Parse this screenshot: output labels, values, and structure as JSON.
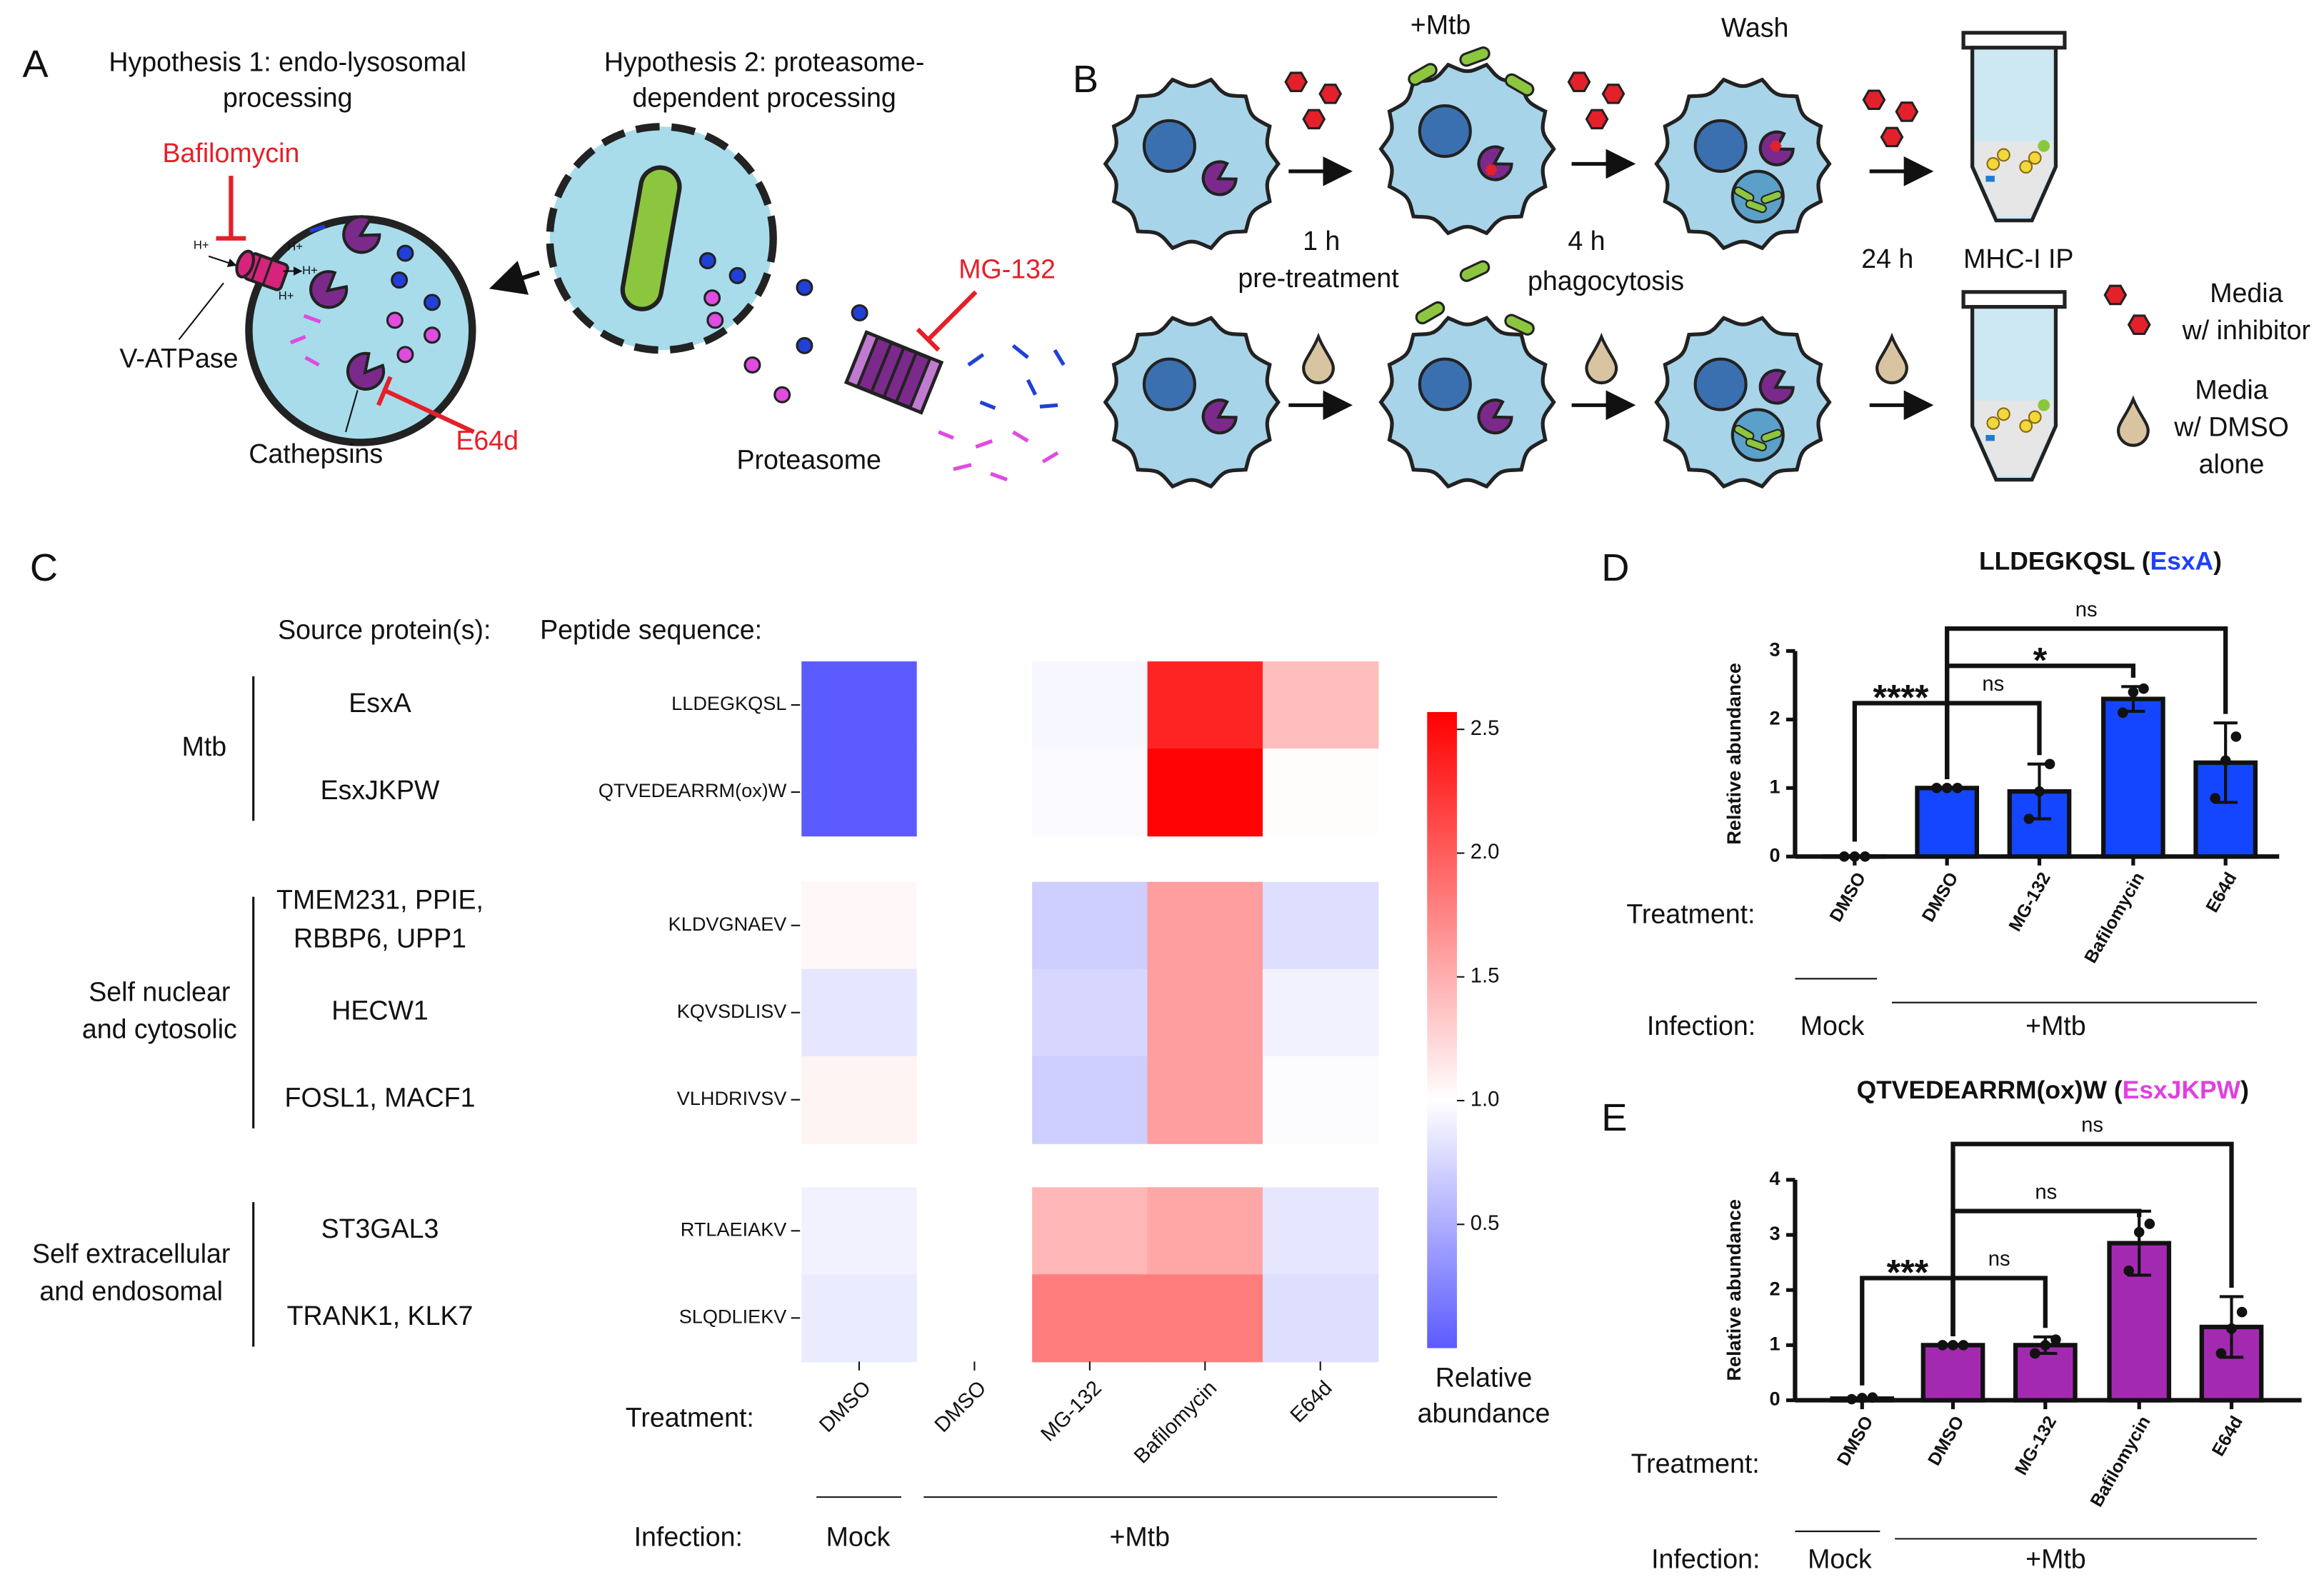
{
  "panel_a": {
    "label": "A",
    "hypothesis_1": [
      "Hypothesis 1: endo-lysosomal",
      "processing"
    ],
    "hypothesis_2": [
      "Hypothesis 2: proteasome-",
      "dependent processing"
    ],
    "inhibitors": {
      "bafilomycin": "Bafilomycin",
      "e64d": "E64d",
      "mg132": "MG-132"
    },
    "proton": "H+",
    "pump": "V-ATPase",
    "proteases": "Cathepsins",
    "proteasome": "Proteasome"
  },
  "panel_b": {
    "label": "B",
    "infection": "+Mtb",
    "wash": "Wash",
    "step_1": [
      "1 h",
      "pre-treatment"
    ],
    "step_2": [
      "4 h",
      "phagocytosis"
    ],
    "step_3": "24 h",
    "readout": "MHC-I IP",
    "legend": [
      [
        "Media",
        "w/ inhibitor"
      ],
      [
        "Media",
        "w/ DMSO",
        "alone"
      ]
    ]
  },
  "chart_data": [
    {
      "type": "heatmap",
      "label": "C",
      "source_header": "Source protein(s):",
      "peptide_header": "Peptide sequence:",
      "row_groups": [
        {
          "name": [
            "Mtb"
          ],
          "rows": [
            {
              "source": [
                "EsxA"
              ],
              "peptide": "LLDEGKQSL",
              "values": [
                0,
                1,
                0.95,
                2.35,
                1.4
              ]
            },
            {
              "source": [
                "EsxJKPW"
              ],
              "peptide": "QTVEDEARRM(ox)W",
              "values": [
                0,
                1,
                0.97,
                2.55,
                1.02
              ]
            }
          ]
        },
        {
          "name": [
            "Self nuclear",
            "and cytosolic"
          ],
          "rows": [
            {
              "source": [
                "TMEM231, PPIE,",
                "RBBP6, UPP1"
              ],
              "peptide": "KLDVGNAEV",
              "values": [
                1.05,
                1,
                0.7,
                1.6,
                0.8
              ]
            },
            {
              "source": [
                "HECW1"
              ],
              "peptide": "KQVSDLISV",
              "values": [
                0.85,
                1,
                0.75,
                1.6,
                0.92
              ]
            },
            {
              "source": [
                "FOSL1, MACF1"
              ],
              "peptide": "VLHDRIVSV",
              "values": [
                1.07,
                1,
                0.7,
                1.6,
                0.98
              ]
            }
          ]
        },
        {
          "name": [
            "Self extracellular",
            "and endosomal"
          ],
          "rows": [
            {
              "source": [
                "ST3GAL3"
              ],
              "peptide": "RTLAEIAKV",
              "values": [
                0.92,
                1,
                1.45,
                1.55,
                0.85
              ]
            },
            {
              "source": [
                "TRANK1, KLK7"
              ],
              "peptide": "SLQDLIEKV",
              "values": [
                0.88,
                1,
                1.8,
                1.8,
                0.8
              ]
            }
          ]
        }
      ],
      "columns": [
        "DMSO",
        "DMSO",
        "MG-132",
        "Bafilomycin",
        "E64d"
      ],
      "x_label": "Treatment:",
      "infection_label": "Infection:",
      "infection_groups": [
        "Mock",
        "+Mtb"
      ],
      "colorbar": {
        "label": [
          "Relative",
          "abundance"
        ],
        "clim": [
          0,
          2.57
        ],
        "center": 1,
        "colors": [
          "#5b5bff",
          "#ffffff",
          "#ff0000"
        ],
        "ticks": [
          0.5,
          {
            "value": 1,
            "label": "1.0"
          },
          1.5,
          {
            "value": 2,
            "label": "2.0"
          },
          2.5
        ]
      }
    },
    {
      "type": "bar",
      "label": "D",
      "title_parts": [
        {
          "text": "LLDEGKQSL ("
        },
        {
          "text": "EsxA",
          "color": "#1f3fff"
        },
        {
          "text": ")"
        }
      ],
      "ylabel": "Relative abundance",
      "ylim": [
        0,
        3
      ],
      "yticks": [
        0,
        1,
        2,
        3
      ],
      "categories": [
        "DMSO",
        "DMSO",
        "MG-132",
        "Bafilomycin",
        "E64d"
      ],
      "values": [
        0,
        1,
        0.95,
        2.3,
        1.37
      ],
      "errors": [
        0,
        0,
        0.4,
        0.18,
        0.58
      ],
      "points": [
        [
          0,
          0,
          0
        ],
        [
          1,
          1,
          1
        ],
        [
          0.55,
          0.95,
          1.35
        ],
        [
          2.1,
          2.4,
          2.45
        ],
        [
          0.85,
          1.4,
          1.75
        ]
      ],
      "color": "#1446ff",
      "x_label": "Treatment:",
      "infection_label": "Infection:",
      "infection_groups": [
        "Mock",
        "+Mtb"
      ],
      "comparisons": [
        {
          "bars": [
            0,
            1
          ],
          "label": "****"
        },
        {
          "bars": [
            1,
            2
          ],
          "label": "ns"
        },
        {
          "bars": [
            1,
            3
          ],
          "label": "*"
        },
        {
          "bars": [
            1,
            4
          ],
          "label": "ns"
        }
      ]
    },
    {
      "type": "bar",
      "label": "E",
      "title_parts": [
        {
          "text": "QTVEDEARRM(ox)W ("
        },
        {
          "text": "EsxJKPW",
          "color": "#e040e0"
        },
        {
          "text": ")"
        }
      ],
      "ylabel": "Relative abundance",
      "ylim": [
        0,
        4
      ],
      "yticks": [
        0,
        1,
        2,
        3,
        4
      ],
      "categories": [
        "DMSO",
        "DMSO",
        "MG-132",
        "Bafilomycin",
        "E64d"
      ],
      "values": [
        0.03,
        1,
        1,
        2.85,
        1.33
      ],
      "errors": [
        0,
        0,
        0.15,
        0.58,
        0.55
      ],
      "points": [
        [
          0.02,
          0.04,
          0.05
        ],
        [
          1,
          1,
          1
        ],
        [
          0.85,
          1,
          1.1
        ],
        [
          2.35,
          3.05,
          3.2
        ],
        [
          0.85,
          1.3,
          1.6
        ]
      ],
      "color": "#a32ab0",
      "x_label": "Treatment:",
      "infection_label": "Infection:",
      "infection_groups": [
        "Mock",
        "+Mtb"
      ],
      "comparisons": [
        {
          "bars": [
            0,
            1
          ],
          "label": "***"
        },
        {
          "bars": [
            1,
            2
          ],
          "label": "ns"
        },
        {
          "bars": [
            1,
            3
          ],
          "label": "ns"
        },
        {
          "bars": [
            1,
            4
          ],
          "label": "ns"
        }
      ]
    }
  ]
}
